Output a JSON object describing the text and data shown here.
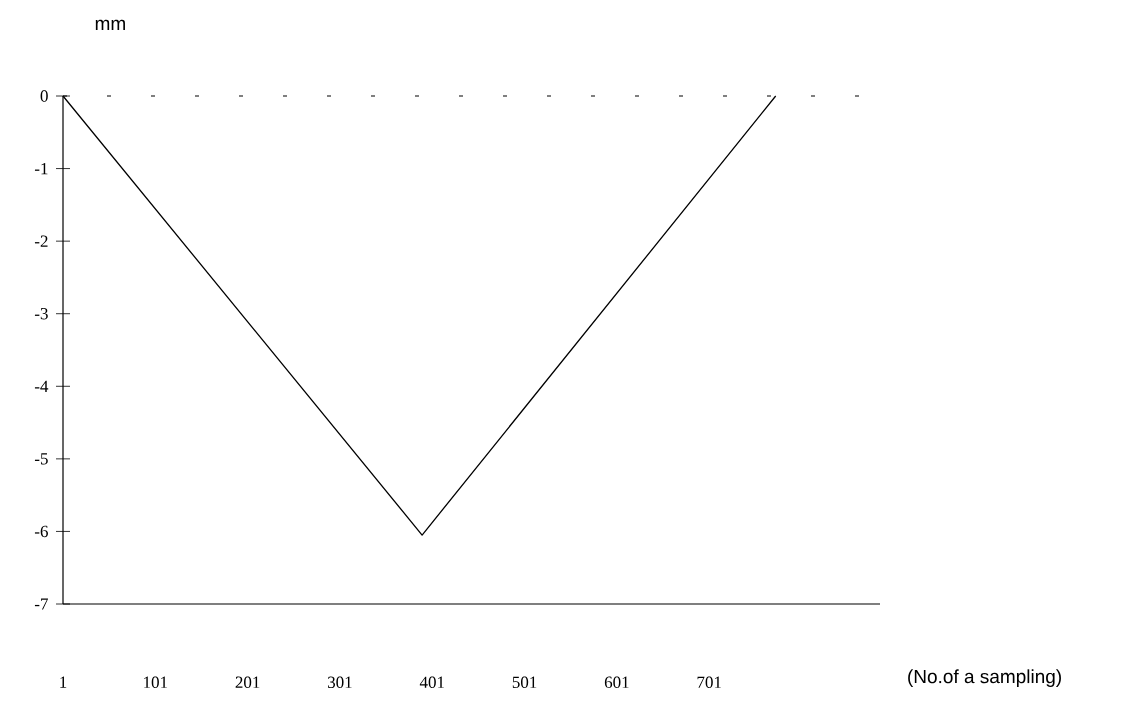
{
  "chart_data": {
    "type": "line",
    "xlabel": "(No.of a sampling)",
    "ylabel": "mm",
    "x": [
      1,
      390,
      773
    ],
    "series": [
      {
        "color": "#000000",
        "values": [
          0,
          -6.05,
          0
        ]
      }
    ],
    "xlim": [
      1,
      886
    ],
    "ylim": [
      -7,
      0
    ],
    "xticks": [
      1,
      101,
      201,
      301,
      401,
      501,
      601,
      701
    ],
    "yticks": [
      0,
      -1,
      -2,
      -3,
      -4,
      -5,
      -6,
      -7
    ],
    "ref_lines": [
      {
        "axis": "y",
        "value": 0,
        "line_style": "dashed",
        "color": "#000000"
      }
    ],
    "marker": "none",
    "line_style": "solid"
  }
}
